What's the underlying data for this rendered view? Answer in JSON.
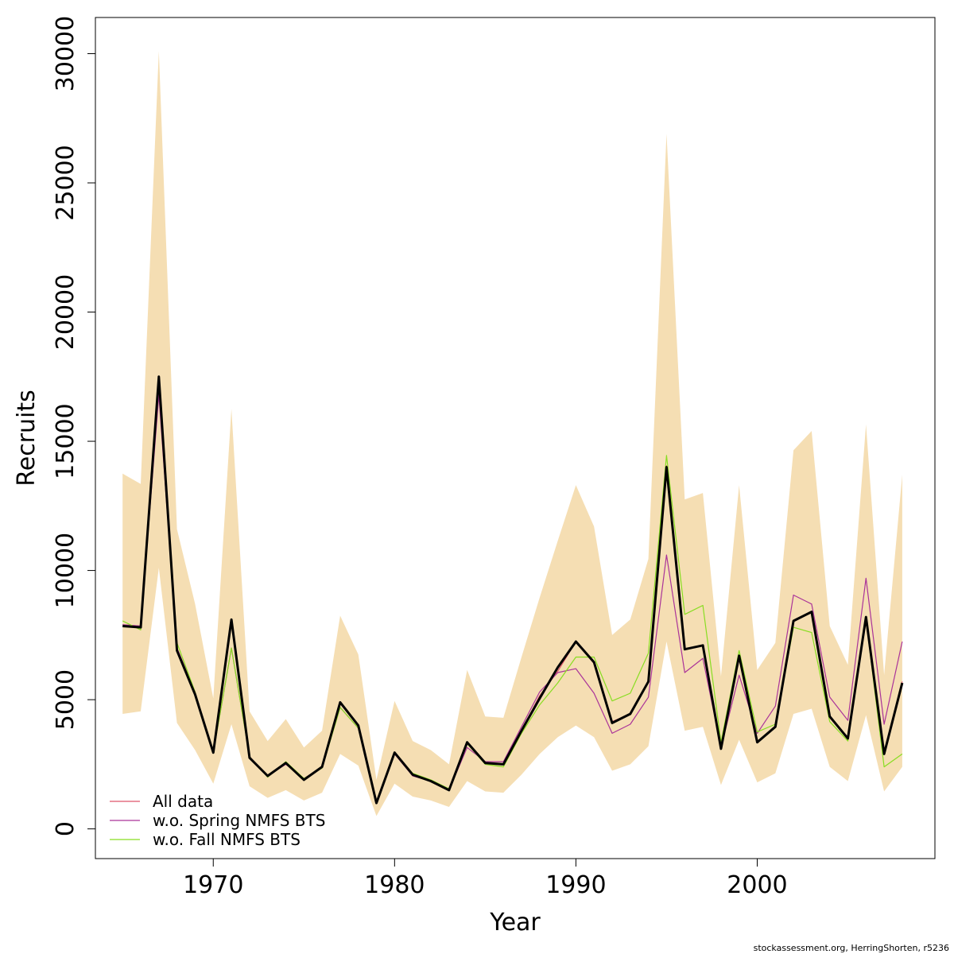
{
  "chart_data": {
    "type": "line",
    "title": "",
    "xlabel": "Year",
    "ylabel": "Recruits",
    "xlim": [
      1963.5,
      2009.8
    ],
    "ylim": [
      -1150,
      31400
    ],
    "x_ticks": [
      1970,
      1980,
      1990,
      2000
    ],
    "y_ticks": [
      0,
      5000,
      10000,
      15000,
      20000,
      25000,
      30000
    ],
    "grid": false,
    "legend_position": "bottom-left",
    "x": [
      1965,
      1966,
      1967,
      1968,
      1969,
      1970,
      1971,
      1972,
      1973,
      1974,
      1975,
      1976,
      1977,
      1978,
      1979,
      1980,
      1981,
      1982,
      1983,
      1984,
      1985,
      1986,
      1987,
      1988,
      1989,
      1990,
      1991,
      1992,
      1993,
      1994,
      1995,
      1996,
      1997,
      1998,
      1999,
      2000,
      2001,
      2002,
      2003,
      2004,
      2005,
      2006,
      2007,
      2008
    ],
    "band": {
      "color": "#f5deb3",
      "lower": [
        4450,
        4550,
        10100,
        4100,
        3050,
        1750,
        4050,
        1650,
        1200,
        1500,
        1100,
        1400,
        2900,
        2450,
        500,
        1750,
        1250,
        1100,
        850,
        1850,
        1450,
        1400,
        2100,
        2900,
        3550,
        4000,
        3550,
        2250,
        2500,
        3200,
        7250,
        3800,
        3950,
        1700,
        3450,
        1800,
        2150,
        4450,
        4650,
        2400,
        1850,
        4400,
        1450,
        2400
      ],
      "upper": [
        13750,
        13350,
        30100,
        11600,
        8700,
        5050,
        16250,
        4550,
        3400,
        4250,
        3150,
        3800,
        8250,
        6750,
        1900,
        4950,
        3400,
        3050,
        2500,
        6150,
        4350,
        4300,
        6650,
        8950,
        11150,
        13300,
        11700,
        7500,
        8100,
        10450,
        26900,
        12750,
        13000,
        5900,
        13300,
        6150,
        7200,
        14650,
        15400,
        7850,
        6350,
        15650,
        5950,
        13700
      ]
    },
    "series": [
      {
        "name": "All data",
        "color": "#df536b",
        "width": 1.2,
        "values": [
          7900,
          7850,
          17400,
          7000,
          5300,
          2950,
          8100,
          2750,
          2050,
          2550,
          1900,
          2400,
          4850,
          4000,
          1000,
          2950,
          2100,
          1850,
          1500,
          3350,
          2550,
          2500,
          3800,
          5150,
          6100,
          7250,
          6400,
          4150,
          4450,
          5700,
          14050,
          6950,
          7100,
          3150,
          6700,
          3350,
          3950,
          8050,
          8400,
          4300,
          3500,
          8150,
          2900,
          5700
        ]
      },
      {
        "name": "w.o. Spring NMFS BTS",
        "color": "#aa3399",
        "width": 1.2,
        "values": [
          7900,
          7850,
          16800,
          7000,
          5300,
          2950,
          7000,
          2800,
          2050,
          2500,
          1950,
          2400,
          4700,
          3900,
          1000,
          2900,
          2050,
          1850,
          1500,
          3150,
          2600,
          2600,
          3950,
          5300,
          6050,
          6200,
          5250,
          3700,
          4050,
          5100,
          10600,
          6050,
          6600,
          3150,
          5950,
          3700,
          4750,
          9050,
          8700,
          5100,
          4200,
          9700,
          4050,
          7250
        ]
      },
      {
        "name": "w.o. Fall NMFS BTS",
        "color": "#88dd22",
        "width": 1.2,
        "values": [
          8050,
          7700,
          17400,
          7200,
          5300,
          2950,
          7000,
          2800,
          2000,
          2600,
          1950,
          2350,
          4700,
          3900,
          1000,
          2950,
          2150,
          1900,
          1550,
          3300,
          2500,
          2400,
          3700,
          4800,
          5650,
          6650,
          6650,
          4950,
          5250,
          6800,
          14450,
          8300,
          8650,
          3350,
          6900,
          3750,
          4050,
          7800,
          7600,
          4150,
          3400,
          8100,
          2400,
          2900
        ]
      },
      {
        "name": "",
        "color": "#000000",
        "width": 3.0,
        "values": [
          7850,
          7800,
          17500,
          6900,
          5200,
          2950,
          8100,
          2750,
          2050,
          2550,
          1900,
          2400,
          4900,
          4000,
          1000,
          2950,
          2100,
          1850,
          1500,
          3350,
          2550,
          2500,
          3800,
          5050,
          6250,
          7250,
          6450,
          4100,
          4450,
          5700,
          14000,
          6950,
          7100,
          3100,
          6700,
          3350,
          3950,
          8050,
          8400,
          4350,
          3500,
          8200,
          2900,
          5650
        ]
      }
    ],
    "legend": [
      {
        "label": "All data",
        "color": "#df536b"
      },
      {
        "label": "w.o. Spring NMFS BTS",
        "color": "#aa3399"
      },
      {
        "label": "w.o. Fall NMFS BTS",
        "color": "#88dd22"
      }
    ]
  },
  "footer": {
    "credit": "stockassessment.org, HerringShorten, r5236"
  }
}
